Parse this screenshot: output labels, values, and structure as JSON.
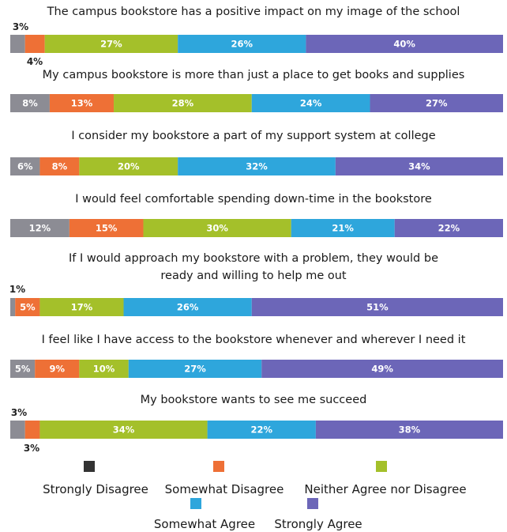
{
  "chart_data": {
    "type": "bar",
    "stacked": true,
    "orientation": "horizontal",
    "categories": [
      "The campus bookstore has a positive impact on my image of the school",
      "My campus bookstore is more than just a place to get books and supplies",
      "I consider my bookstore a part of my support system at college",
      "I would feel comfortable spending down-time in the bookstore",
      "If I would approach my bookstore with a problem, they would be ready and willing to help me out",
      "I feel like I have access to the bookstore whenever and wherever I need it",
      "My bookstore wants to see me succeed"
    ],
    "series": [
      {
        "name": "Strongly Disagree",
        "color": "#8c8c94",
        "values": [
          3,
          8,
          6,
          12,
          1,
          5,
          3
        ]
      },
      {
        "name": "Somewhat Disagree",
        "color": "#ee7036",
        "values": [
          4,
          13,
          8,
          15,
          5,
          9,
          3
        ]
      },
      {
        "name": "Neither Agree nor Disagree",
        "color": "#a4c02a",
        "values": [
          27,
          28,
          20,
          30,
          17,
          10,
          34
        ]
      },
      {
        "name": "Somewhat Agree",
        "color": "#2ea6dc",
        "values": [
          26,
          24,
          32,
          21,
          26,
          27,
          22
        ]
      },
      {
        "name": "Strongly Agree",
        "color": "#6c66b8",
        "values": [
          40,
          27,
          34,
          22,
          51,
          49,
          38
        ]
      }
    ],
    "value_labels": [
      [
        "3%",
        "4%",
        "27%",
        "26%",
        "40%"
      ],
      [
        "8%",
        "13%",
        "28%",
        "24%",
        "27%"
      ],
      [
        "6%",
        "8%",
        "20%",
        "32%",
        "34%"
      ],
      [
        "12%",
        "15%",
        "30%",
        "21%",
        "22%"
      ],
      [
        "1%",
        "5%",
        "17%",
        "26%",
        "51%"
      ],
      [
        "5%",
        "9%",
        "10%",
        "27%",
        "49%"
      ],
      [
        "3%",
        "3%",
        "34%",
        "22%",
        "38%"
      ]
    ],
    "legend_colors": [
      "#333333",
      "#ee7036",
      "#a4c02a",
      "#2ea6dc",
      "#6c66b8"
    ],
    "legend_placement": "bottom"
  }
}
